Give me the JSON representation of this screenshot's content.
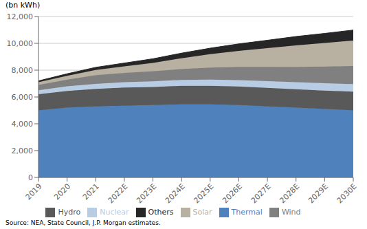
{
  "chart_data": {
    "type": "area",
    "stacked": true,
    "ylabel": "(bn kWh)",
    "annotations": [
      "Source: NEA, State Council, J.P. Morgan estimates."
    ],
    "categories": [
      "2019",
      "2020",
      "2021",
      "2022E",
      "2023E",
      "2024E",
      "2025E",
      "2026E",
      "2027E",
      "2028E",
      "2029E",
      "2030E"
    ],
    "series": [
      {
        "name": "Thermal",
        "color": "#4F81BD",
        "values": [
          5000,
          5200,
          5300,
          5350,
          5400,
          5450,
          5450,
          5400,
          5300,
          5200,
          5100,
          5000
        ]
      },
      {
        "name": "Hydro",
        "color": "#595959",
        "values": [
          1200,
          1250,
          1300,
          1350,
          1350,
          1380,
          1380,
          1380,
          1380,
          1380,
          1380,
          1400
        ]
      },
      {
        "name": "Nuclear",
        "color": "#B8CCE4",
        "values": [
          300,
          350,
          380,
          400,
          420,
          440,
          460,
          480,
          500,
          520,
          540,
          560
        ]
      },
      {
        "name": "Wind",
        "color": "#808080",
        "values": [
          400,
          500,
          650,
          700,
          750,
          820,
          900,
          980,
          1060,
          1150,
          1250,
          1350
        ]
      },
      {
        "name": "Solar",
        "color": "#B8B0A0",
        "values": [
          200,
          280,
          380,
          480,
          620,
          800,
          1000,
          1200,
          1400,
          1600,
          1750,
          1900
        ]
      },
      {
        "name": "Others",
        "color": "#262626",
        "values": [
          100,
          150,
          200,
          250,
          310,
          380,
          450,
          520,
          590,
          660,
          720,
          780
        ]
      }
    ],
    "ylim": [
      0,
      12000
    ],
    "yticks": [
      0,
      {
        "value": 2000,
        "label": "2,000"
      },
      {
        "value": 4000,
        "label": "4,000"
      },
      {
        "value": 6000,
        "label": "6,000"
      },
      {
        "value": 8000,
        "label": "8,000"
      },
      {
        "value": 10000,
        "label": "10,000"
      },
      {
        "value": 12000,
        "label": "12,000"
      }
    ],
    "grid": true,
    "legend": "bottom"
  }
}
